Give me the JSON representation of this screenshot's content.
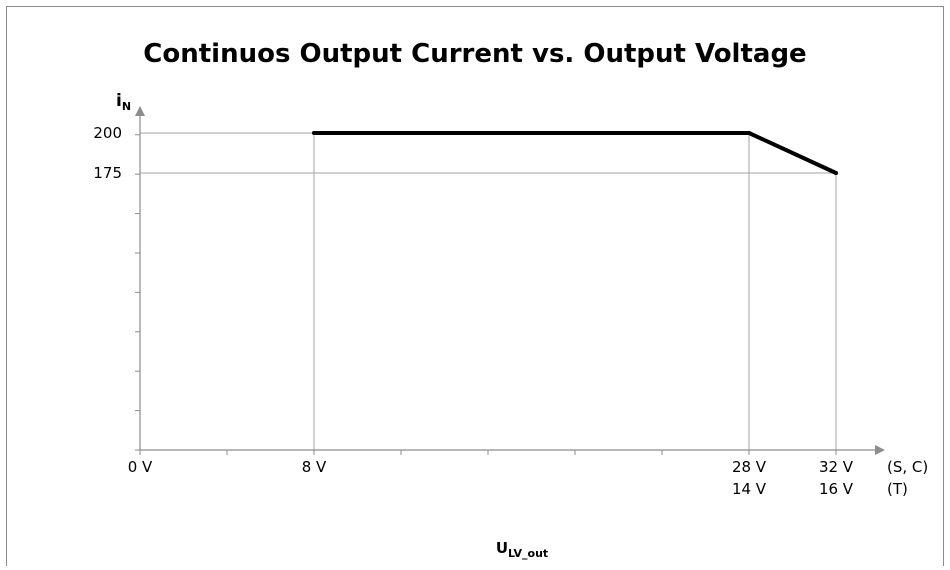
{
  "chart_data": {
    "type": "line",
    "title": "Continuos Output Current vs. Output Voltage",
    "ylabel": {
      "main": "i",
      "sub": "N"
    },
    "xlabel": {
      "main": "U",
      "sub": "LV_out"
    },
    "y_ticks": [
      200,
      175
    ],
    "x_tick_labels": [
      {
        "v": 0,
        "lines": [
          "0 V"
        ]
      },
      {
        "v": 8,
        "lines": [
          "8 V"
        ]
      },
      {
        "v": 28,
        "lines": [
          "28 V",
          "14 V"
        ]
      },
      {
        "v": 32,
        "lines": [
          "32 V",
          "16 V"
        ]
      }
    ],
    "variant_labels": [
      "(S, C)",
      "(T)"
    ],
    "series": [
      {
        "x": [
          8,
          28,
          32
        ],
        "y": [
          200,
          200,
          175
        ],
        "color": "#000000"
      }
    ],
    "xlim": [
      0,
      34
    ],
    "grid": true,
    "colors": {
      "line": "#000000",
      "axis": "#8c8c8c",
      "grid": "#a6a6a6"
    }
  }
}
